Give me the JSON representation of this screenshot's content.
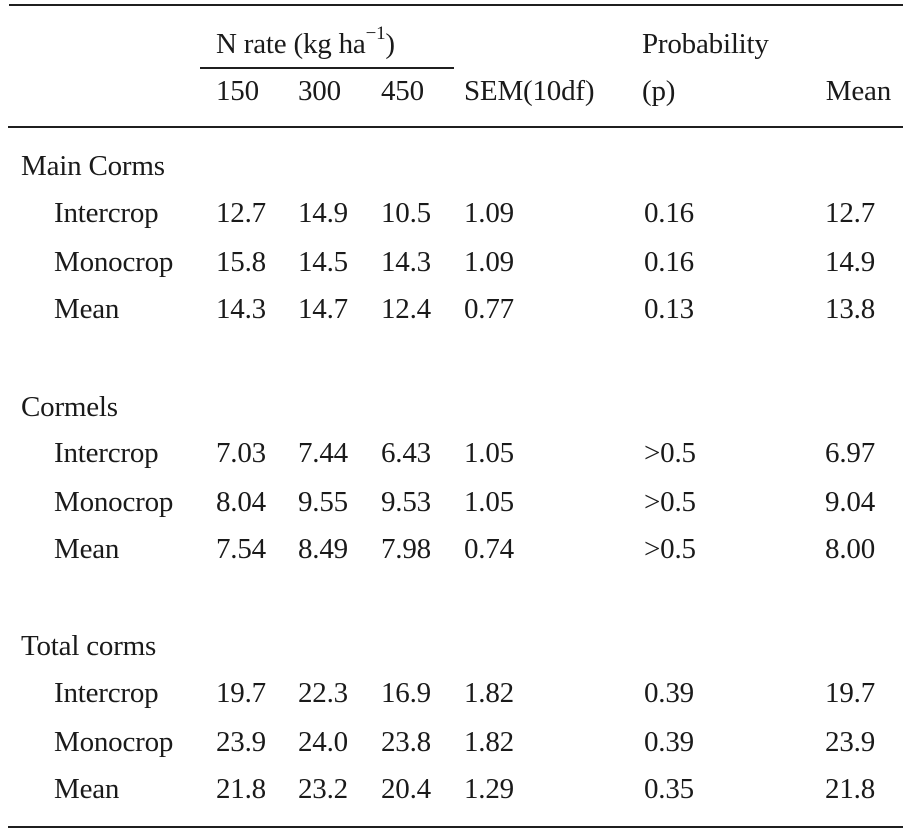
{
  "header": {
    "n_rate_label": "N rate (kg ha",
    "n_rate_sup": "−1",
    "n_rate_close": ")",
    "probability_label": "Probability",
    "col_150": "150",
    "col_300": "300",
    "col_450": "450",
    "col_sem": "SEM(10df)",
    "col_p": "(p)",
    "col_mean": "Mean"
  },
  "sections": [
    {
      "title": "Main Corms",
      "rows": [
        {
          "label": "Intercrop",
          "v150": "12.7",
          "v300": "14.9",
          "v450": "10.5",
          "sem": "1.09",
          "p": "0.16",
          "mean": "12.7"
        },
        {
          "label": "Monocrop",
          "v150": "15.8",
          "v300": "14.5",
          "v450": "14.3",
          "sem": "1.09",
          "p": "0.16",
          "mean": "14.9"
        },
        {
          "label": "Mean",
          "v150": "14.3",
          "v300": "14.7",
          "v450": "12.4",
          "sem": "0.77",
          "p": "0.13",
          "mean": "13.8"
        }
      ]
    },
    {
      "title": "Cormels",
      "rows": [
        {
          "label": "Intercrop",
          "v150": "7.03",
          "v300": "7.44",
          "v450": "6.43",
          "sem": "1.05",
          "p": ">0.5",
          "mean": "6.97"
        },
        {
          "label": "Monocrop",
          "v150": "8.04",
          "v300": "9.55",
          "v450": "9.53",
          "sem": "1.05",
          "p": ">0.5",
          "mean": "9.04"
        },
        {
          "label": "Mean",
          "v150": "7.54",
          "v300": "8.49",
          "v450": "7.98",
          "sem": "0.74",
          "p": ">0.5",
          "mean": "8.00"
        }
      ]
    },
    {
      "title": "Total corms",
      "rows": [
        {
          "label": "Intercrop",
          "v150": "19.7",
          "v300": "22.3",
          "v450": "16.9",
          "sem": "1.82",
          "p": "0.39",
          "mean": "19.7"
        },
        {
          "label": "Monocrop",
          "v150": "23.9",
          "v300": "24.0",
          "v450": "23.8",
          "sem": "1.82",
          "p": "0.39",
          "mean": "23.9"
        },
        {
          "label": "Mean",
          "v150": "21.8",
          "v300": "23.2",
          "v450": "20.4",
          "sem": "1.29",
          "p": "0.35",
          "mean": "21.8"
        }
      ]
    }
  ]
}
